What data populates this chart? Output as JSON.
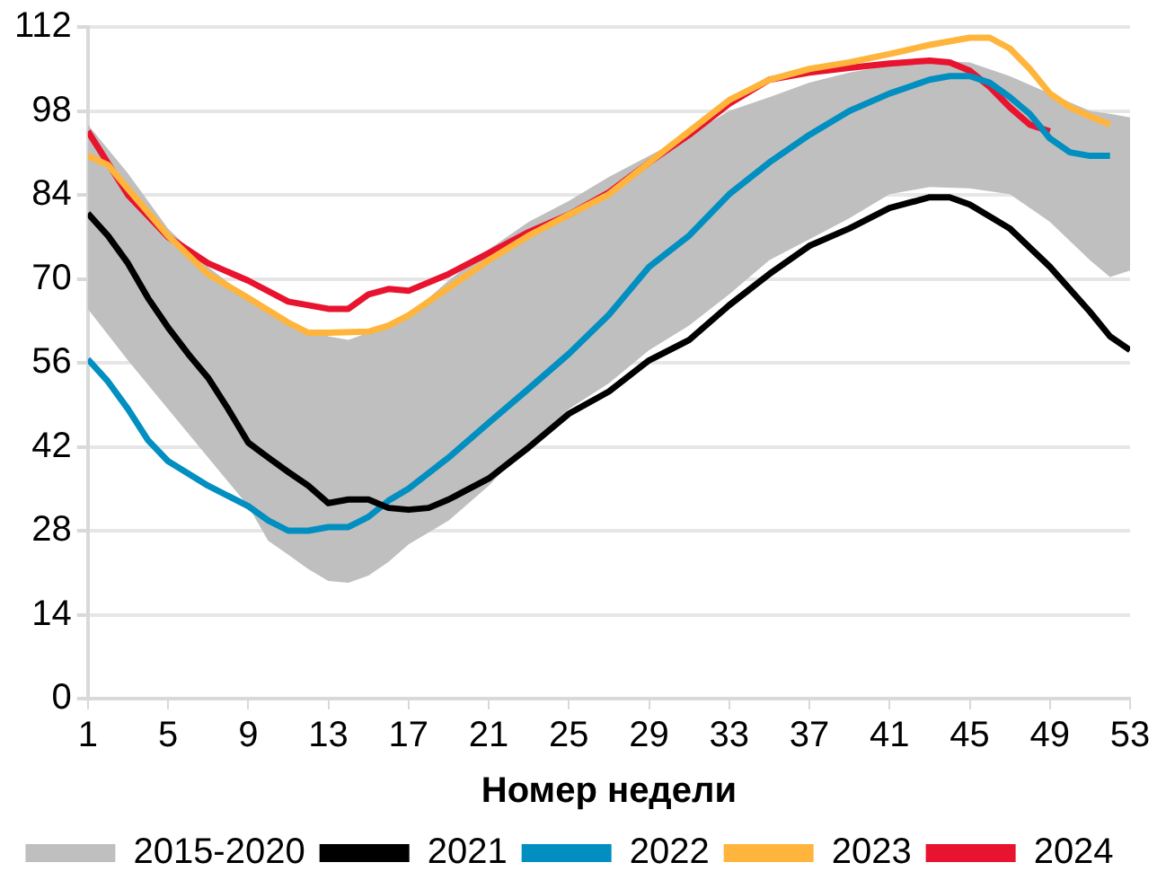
{
  "chart_data": {
    "type": "line",
    "xlabel": "Номер недели",
    "xlim": [
      1,
      53
    ],
    "xticks": [
      1,
      5,
      9,
      13,
      17,
      21,
      25,
      29,
      33,
      37,
      41,
      45,
      49,
      53
    ],
    "ylim": [
      0,
      112
    ],
    "yticks": [
      0,
      14,
      28,
      42,
      56,
      70,
      84,
      98,
      112
    ],
    "grid": "y",
    "legend": "bottom",
    "marker": "none",
    "line_style": "solid",
    "series": [
      {
        "name": "2015-2020",
        "type": "area",
        "color": "#bfbfbf",
        "x": [
          1,
          3,
          5,
          7,
          9,
          10,
          11,
          12,
          13,
          14,
          15,
          16,
          17,
          19,
          21,
          23,
          25,
          27,
          29,
          31,
          33,
          35,
          37,
          39,
          41,
          43,
          45,
          47,
          49,
          51,
          52,
          53
        ],
        "values": [
          null,
          null,
          null,
          null,
          null,
          null,
          null,
          null,
          null,
          null,
          null,
          null,
          null,
          null,
          null,
          null,
          null,
          null,
          null,
          null,
          null,
          null,
          null,
          null,
          null,
          null,
          null,
          null,
          null,
          null,
          null,
          null
        ],
        "lower": [
          65,
          56.4,
          48.3,
          40.2,
          32.1,
          26.3,
          24,
          21.6,
          19.6,
          19.3,
          20.5,
          22.8,
          25.7,
          29.7,
          35.5,
          42.5,
          48.3,
          52.6,
          58.1,
          62.2,
          67.4,
          73.1,
          76.6,
          80.1,
          84.1,
          85.3,
          85.1,
          84.1,
          79.5,
          73.1,
          70.3,
          71.4
        ],
        "upper": [
          95.7,
          87.6,
          78.4,
          72,
          66.8,
          64.5,
          62.7,
          61.5,
          60.4,
          59.8,
          61,
          62.4,
          63.9,
          69.7,
          74.9,
          79.5,
          83,
          87,
          90.5,
          94,
          98,
          100.3,
          102.7,
          104.4,
          105.6,
          106.4,
          106.1,
          103.8,
          100.9,
          98,
          97.5,
          96.9
        ]
      },
      {
        "name": "2021",
        "color": "#000000",
        "x": [
          1,
          2,
          3,
          4,
          5,
          6,
          7,
          8,
          9,
          10,
          11,
          12,
          13,
          14,
          15,
          16,
          17,
          18,
          19,
          21,
          23,
          25,
          27,
          29,
          31,
          33,
          35,
          37,
          39,
          41,
          43,
          44,
          45,
          47,
          49,
          51,
          52,
          53
        ],
        "values": [
          80.9,
          77.2,
          72.6,
          66.8,
          61.9,
          57.5,
          53.5,
          48.3,
          42.7,
          40.2,
          37.8,
          35.5,
          32.6,
          33.2,
          33.2,
          31.8,
          31.5,
          31.8,
          33.2,
          36.7,
          41.9,
          47.5,
          51.2,
          56.4,
          59.8,
          65.6,
          70.8,
          75.5,
          78.4,
          81.8,
          83.6,
          83.6,
          82.4,
          78.4,
          72,
          64.5,
          60.4,
          58.1
        ]
      },
      {
        "name": "2022",
        "color": "#008fc0",
        "x": [
          1,
          2,
          3,
          4,
          5,
          7,
          9,
          10,
          11,
          12,
          13,
          14,
          15,
          16,
          17,
          19,
          21,
          23,
          25,
          27,
          29,
          31,
          33,
          35,
          37,
          39,
          41,
          43,
          44,
          45,
          46,
          47,
          48,
          49,
          50,
          51,
          52
        ],
        "values": [
          56.6,
          52.9,
          48.3,
          43.1,
          39.6,
          35.5,
          32.1,
          29.7,
          28,
          28,
          28.6,
          28.6,
          30.3,
          33,
          35,
          40.2,
          46,
          51.7,
          57.5,
          64,
          72,
          77.2,
          84.1,
          89.4,
          94,
          98,
          100.9,
          103.2,
          103.8,
          103.8,
          102.7,
          100.3,
          97.5,
          93.4,
          91.1,
          90.5,
          90.5
        ]
      },
      {
        "name": "2023",
        "color": "#ffb43c",
        "x": [
          1,
          2,
          3,
          5,
          7,
          9,
          11,
          12,
          13,
          15,
          16,
          17,
          19,
          21,
          23,
          25,
          27,
          29,
          31,
          33,
          35,
          37,
          39,
          41,
          43,
          45,
          46,
          47,
          48,
          49,
          50,
          51,
          52
        ],
        "values": [
          90.5,
          89,
          85,
          77.2,
          70.8,
          66.8,
          62.7,
          61,
          61,
          61.2,
          62.2,
          63.9,
          68.5,
          73.1,
          77.2,
          80.7,
          84.1,
          89.4,
          94.6,
          99.8,
          103.2,
          105,
          106.1,
          107.5,
          109,
          110.2,
          110.2,
          108.4,
          105,
          100.9,
          98.6,
          97.1,
          95.7
        ]
      },
      {
        "name": "2024",
        "color": "#e8132e",
        "x": [
          1,
          3,
          5,
          7,
          9,
          11,
          13,
          14,
          15,
          16,
          17,
          19,
          21,
          23,
          25,
          27,
          29,
          31,
          33,
          35,
          37,
          39,
          41,
          43,
          44,
          45,
          46,
          47,
          48,
          49
        ],
        "values": [
          94.6,
          84,
          77,
          72.6,
          69.7,
          66.2,
          65,
          65,
          67.4,
          68.3,
          68,
          70.8,
          74.3,
          77.8,
          80.7,
          84.4,
          89.4,
          94,
          99.2,
          103.2,
          104.4,
          105.2,
          105.9,
          106.4,
          106.1,
          104.7,
          102,
          98.6,
          95.7,
          94.6
        ]
      }
    ]
  }
}
